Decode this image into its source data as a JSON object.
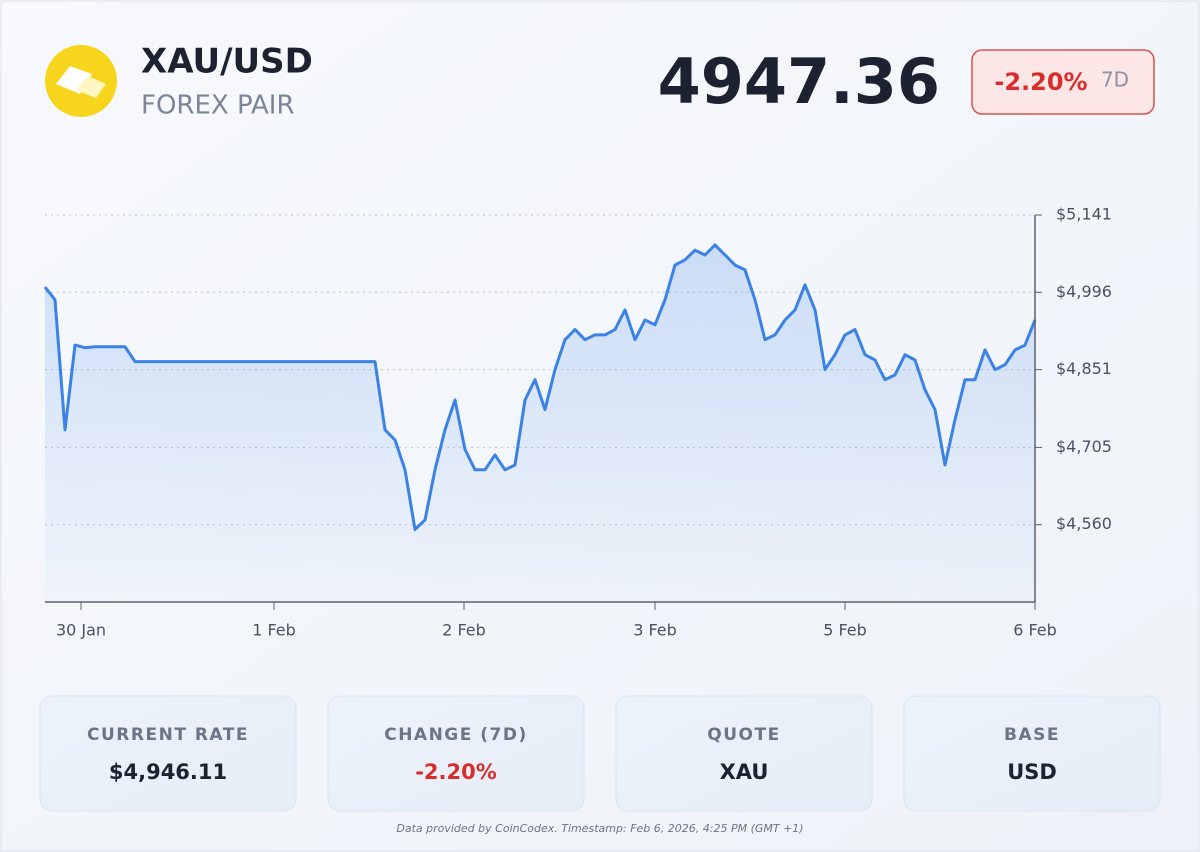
{
  "header": {
    "symbol": "XAU/USD",
    "subtitle": "FOREX PAIR",
    "price": "4947.36",
    "change": "-2.20%",
    "period": "7D"
  },
  "chart_data": {
    "type": "line",
    "color": "#3b82e6",
    "grid": true,
    "values": [
      5006,
      4982,
      4738,
      4897,
      4892,
      4894,
      4894,
      4894,
      4894,
      4866,
      4866,
      4866,
      4866,
      4866,
      4866,
      4866,
      4866,
      4866,
      4866,
      4866,
      4866,
      4866,
      4866,
      4866,
      4866,
      4866,
      4866,
      4866,
      4866,
      4866,
      4866,
      4866,
      4866,
      4866,
      4738,
      4719,
      4663,
      4551,
      4569,
      4663,
      4738,
      4794,
      4701,
      4663,
      4663,
      4691,
      4663,
      4672,
      4794,
      4832,
      4776,
      4851,
      4907,
      4926,
      4907,
      4916,
      4916,
      4926,
      4963,
      4907,
      4944,
      4935,
      4982,
      5047,
      5057,
      5075,
      5066,
      5085,
      5066,
      5047,
      5038,
      4982,
      4907,
      4916,
      4944,
      4963,
      5010,
      4963,
      4851,
      4879,
      4916,
      4926,
      4879,
      4869,
      4832,
      4841,
      4879,
      4869,
      4813,
      4776,
      4672,
      4757,
      4832,
      4832,
      4888,
      4851,
      4860,
      4888,
      4897,
      4944
    ],
    "xlim": [
      0,
      99
    ],
    "xticks": [
      {
        "value": 3.6,
        "label": "30 Jan"
      },
      {
        "value": 22.9,
        "label": "1 Feb"
      },
      {
        "value": 41.9,
        "label": "2 Feb"
      },
      {
        "value": 61,
        "label": "3 Feb"
      },
      {
        "value": 80,
        "label": "5 Feb"
      },
      {
        "value": 99,
        "label": "6 Feb"
      }
    ],
    "ylim": [
      4415,
      5141
    ],
    "yticks": [
      {
        "value": 5141,
        "label": "$5,141"
      },
      {
        "value": 4996,
        "label": "$4,996"
      },
      {
        "value": 4851,
        "label": "$4,851"
      },
      {
        "value": 4705,
        "label": "$4,705"
      },
      {
        "value": 4560,
        "label": "$4,560"
      }
    ]
  },
  "stats": [
    {
      "label": "CURRENT RATE",
      "value": "$4,946.11"
    },
    {
      "label": "CHANGE (7D)",
      "value": "-2.20%"
    },
    {
      "label": "QUOTE",
      "value": "XAU"
    },
    {
      "label": "BASE",
      "value": "USD"
    }
  ],
  "footer": "Data provided by CoinCodex. Timestamp: Feb 6, 2026, 4:25 PM (GMT +1)"
}
